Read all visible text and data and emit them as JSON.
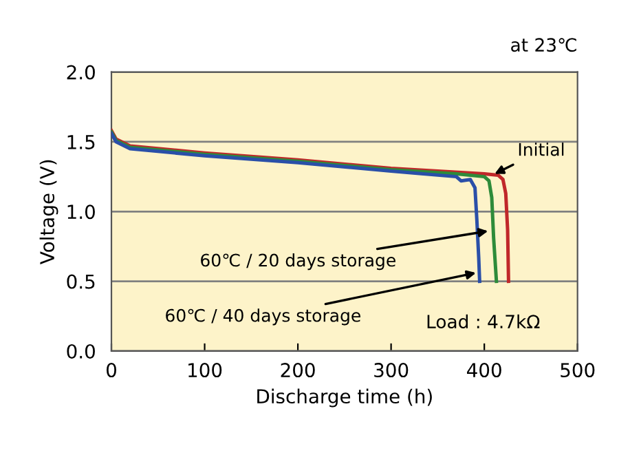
{
  "chart_data": {
    "type": "line",
    "xlabel": "Discharge time (h)",
    "ylabel": "Voltage (V)",
    "xlim": [
      0,
      500
    ],
    "xticks": [
      0,
      100,
      200,
      300,
      400,
      500
    ],
    "ylim": [
      0,
      2
    ],
    "yticks": [
      {
        "value": 0,
        "label": "0.0"
      },
      {
        "value": 0.5,
        "label": "0.5"
      },
      {
        "value": 1,
        "label": "1.0"
      },
      {
        "value": 1.5,
        "label": "1.5"
      },
      {
        "value": 2,
        "label": "2.0"
      }
    ],
    "grid": "y",
    "legend": false,
    "marker": "none",
    "line_style": "solid",
    "series": [
      {
        "color": "#c0282a",
        "x": [
          0,
          5,
          20,
          100,
          200,
          300,
          400,
          415,
          420,
          423,
          425,
          426
        ],
        "values": [
          1.58,
          1.52,
          1.47,
          1.42,
          1.37,
          1.31,
          1.27,
          1.26,
          1.23,
          1.13,
          0.87,
          0.5
        ]
      },
      {
        "color": "#2e8b3a",
        "x": [
          0,
          5,
          20,
          100,
          200,
          300,
          370,
          400,
          405,
          408,
          410,
          413
        ],
        "values": [
          1.57,
          1.51,
          1.46,
          1.41,
          1.36,
          1.3,
          1.27,
          1.25,
          1.22,
          1.1,
          0.81,
          0.5
        ]
      },
      {
        "color": "#2a4fa8",
        "x": [
          0,
          5,
          20,
          100,
          200,
          300,
          370,
          375,
          385,
          390,
          392,
          394,
          395
        ],
        "values": [
          1.56,
          1.5,
          1.45,
          1.4,
          1.35,
          1.29,
          1.25,
          1.22,
          1.23,
          1.17,
          0.94,
          0.67,
          0.5
        ]
      }
    ],
    "annotations": [
      "at 23℃",
      "Load : 4.7kΩ",
      {
        "text": "Initial",
        "x": 411,
        "y": 1.27
      },
      {
        "text": "60℃ / 20 days storage",
        "x": 404,
        "y": 0.86
      },
      {
        "text": "60℃ / 40 days storage",
        "x": 391,
        "y": 0.56
      }
    ]
  }
}
